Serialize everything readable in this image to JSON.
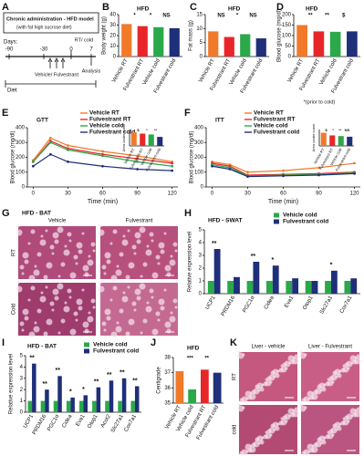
{
  "schematic": {
    "label": "A",
    "title": "Chronic administration - HFD model",
    "subtitle": "(with fat high sucrose diet)",
    "days": "Days:",
    "timepoints": [
      "-90",
      "-30",
      "0",
      "7"
    ],
    "cold": "RT/ cold",
    "treatment": "Vehicle/ Fulvestrant",
    "analysis": "Analysis",
    "diet": "Diet"
  },
  "panel_g": {
    "label": "G",
    "title": "HFD - BAT",
    "columns": [
      "Vehicle",
      "Fulvestrant"
    ],
    "rows": [
      "RT",
      "Cold"
    ]
  },
  "panel_k": {
    "label": "K",
    "columns": [
      "Liver - vehicle",
      "Liver - Fulvestrant"
    ],
    "rows": [
      "RT",
      "cold"
    ]
  },
  "chart_data": [
    {
      "type": "bar",
      "label": "B",
      "title": "HFD",
      "ylabel": "Body weight (g)",
      "categories": [
        "Vehicle RT",
        "Fulvestrant RT",
        "Vehicle cold",
        "Fulvestrant cold"
      ],
      "values": [
        31,
        29,
        28,
        27
      ],
      "colors": [
        "#f07a2a",
        "#e8262a",
        "#2aa84a",
        "#1f2f7a"
      ],
      "ylim": [
        0,
        40
      ],
      "yticks": [
        0,
        10,
        20,
        30,
        40
      ],
      "annotations": [
        "*",
        "*",
        "NS"
      ]
    },
    {
      "type": "bar",
      "label": "C",
      "title": "HFD",
      "ylabel": "Fat mass (g)",
      "categories": [
        "Vehicle RT",
        "Fulvestrant RT",
        "Vehicle cold",
        "Fulvestrant cold"
      ],
      "values": [
        9,
        7,
        8,
        6.5
      ],
      "colors": [
        "#f07a2a",
        "#e8262a",
        "#2aa84a",
        "#1f2f7a"
      ],
      "ylim": [
        0,
        15
      ],
      "yticks": [
        0,
        5,
        10,
        15
      ],
      "annotations": [
        "NS",
        "*",
        "NS"
      ],
      "note": "*(prior to cold)"
    },
    {
      "type": "bar",
      "label": "D",
      "title": "HFD",
      "ylabel": "Blood glucose (mg/dl)",
      "categories": [
        "Vehicle RT",
        "Fulvestrant RT",
        "Vehicle cold",
        "Fulvestrant cold"
      ],
      "values": [
        150,
        120,
        118,
        120
      ],
      "colors": [
        "#f07a2a",
        "#e8262a",
        "#2aa84a",
        "#1f2f7a"
      ],
      "ylim": [
        0,
        200
      ],
      "yticks": [
        0,
        50,
        100,
        150,
        200
      ],
      "annotations": [
        "**",
        "**",
        "$"
      ]
    },
    {
      "type": "line",
      "label": "E",
      "title": "GTT",
      "xlabel": "Time (min)",
      "ylabel": "Blood glucose (mg/dl)",
      "x": [
        0,
        15,
        30,
        60,
        90,
        120
      ],
      "xlim": [
        -5,
        125
      ],
      "xticks": [
        0,
        30,
        60,
        90,
        120
      ],
      "ylim": [
        0,
        400
      ],
      "yticks": [
        0,
        100,
        200,
        300,
        400
      ],
      "series": [
        {
          "name": "Vehicle RT",
          "color": "#f07a2a",
          "values": [
            180,
            330,
            280,
            240,
            210,
            170
          ]
        },
        {
          "name": "Fulvestrant RT",
          "color": "#e8262a",
          "values": [
            170,
            310,
            260,
            220,
            190,
            160
          ]
        },
        {
          "name": "Vehicle cold",
          "color": "#2aa84a",
          "values": [
            170,
            300,
            250,
            210,
            170,
            140
          ]
        },
        {
          "name": "Fulvestrant cold",
          "color": "#1f2f7a",
          "values": [
            140,
            220,
            170,
            140,
            120,
            110
          ]
        }
      ]
    },
    {
      "type": "bar",
      "ylabel": "Area under curve",
      "categories": [
        "Vehicle RT",
        "Fulvestrant RT",
        "Vehicle cold",
        "Fulvestrant cold"
      ],
      "values": [
        33000,
        30000,
        28000,
        22000
      ],
      "colors": [
        "#f07a2a",
        "#e8262a",
        "#2aa84a",
        "#1f2f7a"
      ],
      "ylim": [
        0,
        40000
      ],
      "annotations": [
        "$",
        "*",
        "**"
      ]
    },
    {
      "type": "line",
      "label": "F",
      "title": "ITT",
      "xlabel": "Time (min)",
      "ylabel": "Blood glucose (mg/dl)",
      "x": [
        0,
        15,
        30,
        60,
        90,
        120
      ],
      "xlim": [
        -5,
        125
      ],
      "xticks": [
        0,
        30,
        60,
        90,
        120
      ],
      "ylim": [
        0,
        400
      ],
      "yticks": [
        0,
        100,
        200,
        300,
        400
      ],
      "series": [
        {
          "name": "Vehicle RT",
          "color": "#f07a2a",
          "values": [
            170,
            150,
            100,
            110,
            130,
            160
          ]
        },
        {
          "name": "Fulvestrant RT",
          "color": "#e8262a",
          "values": [
            160,
            140,
            80,
            85,
            90,
            100
          ]
        },
        {
          "name": "Vehicle cold",
          "color": "#2aa84a",
          "values": [
            150,
            130,
            75,
            80,
            85,
            95
          ]
        },
        {
          "name": "Fulvestrant cold",
          "color": "#1f2f7a",
          "values": [
            140,
            120,
            70,
            75,
            80,
            90
          ]
        }
      ]
    },
    {
      "type": "bar",
      "ylabel": "Area under curve",
      "categories": [
        "Vehicle RT",
        "Fulvestrant RT",
        "Vehicle cold",
        "Fulvestrant cold"
      ],
      "values": [
        20000,
        16000,
        15000,
        14000
      ],
      "colors": [
        "#f07a2a",
        "#e8262a",
        "#2aa84a",
        "#1f2f7a"
      ],
      "ylim": [
        0,
        25000
      ],
      "annotations": [
        "$",
        "*",
        "**",
        "NS"
      ]
    },
    {
      "type": "bar",
      "label": "H",
      "title": "HFD - SWAT",
      "ylabel": "Relative expression level",
      "categories": [
        "UCP1",
        "PRDM16",
        "PGC1α",
        "Cidea",
        "Eva1",
        "Otop1",
        "Slc27a1",
        "Cox7a1"
      ],
      "ylim": [
        0,
        5
      ],
      "yticks": [
        0,
        1,
        2,
        3,
        4,
        5
      ],
      "series": [
        {
          "name": "Vehicle cold",
          "color": "#2aa84a",
          "values": [
            1,
            1,
            1,
            1,
            1,
            1,
            1,
            1
          ]
        },
        {
          "name": "Fulvestrant cold",
          "color": "#1f2f7a",
          "values": [
            3.5,
            1.3,
            2.5,
            2.2,
            1.2,
            1.0,
            1.8,
            1.2
          ]
        }
      ],
      "category_annotations": [
        "**",
        null,
        "**",
        "*",
        null,
        null,
        "*",
        null
      ]
    },
    {
      "type": "bar",
      "label": "I",
      "title": "HFD - BAT",
      "ylabel": "Relative expression level",
      "categories": [
        "UCP1",
        "PRDM16",
        "PGC1α",
        "Cidea",
        "Eva1",
        "Otop1",
        "Acot2",
        "Slc27a1",
        "Cox7a1"
      ],
      "ylim": [
        0,
        5
      ],
      "yticks": [
        0,
        1,
        2,
        3,
        4,
        5
      ],
      "series": [
        {
          "name": "Vehicle cold",
          "color": "#2aa84a",
          "values": [
            1,
            1,
            1,
            1,
            1,
            1,
            1,
            1,
            1
          ]
        },
        {
          "name": "Fulvestrant cold",
          "color": "#1f2f7a",
          "values": [
            4.3,
            2.0,
            3.2,
            1.3,
            1.5,
            2.2,
            2.8,
            3.0,
            2.3
          ]
        }
      ],
      "category_annotations": [
        "**",
        "**",
        "**",
        "*",
        "*",
        "**",
        "**",
        "**",
        "**"
      ]
    },
    {
      "type": "bar",
      "label": "J",
      "title": "HFD",
      "ylabel": "Centigrade",
      "categories": [
        "Vehicle RT",
        "Vehicle cold",
        "Fulvestrant RT",
        "Fulvestrant cold"
      ],
      "values": [
        37.1,
        35.9,
        37.2,
        37.0
      ],
      "colors": [
        "#f07a2a",
        "#2aa84a",
        "#e8262a",
        "#1f2f7a"
      ],
      "ylim": [
        35,
        38
      ],
      "yticks": [
        35,
        36,
        37,
        38
      ],
      "annotations": [
        "***",
        "**"
      ]
    }
  ]
}
